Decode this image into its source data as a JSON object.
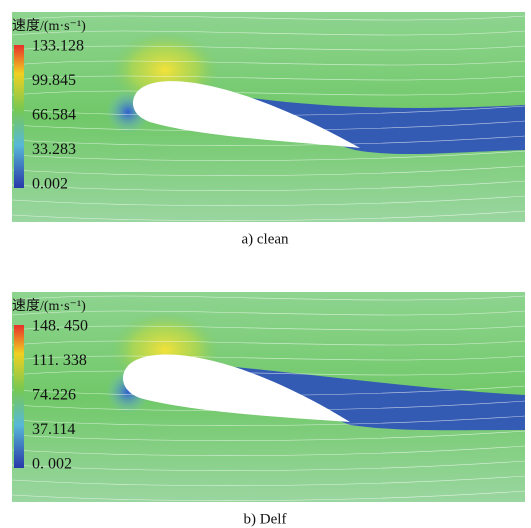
{
  "panels": [
    {
      "legend": {
        "title": "速度/(m·s⁻¹)",
        "ticks": [
          "133.128",
          "99.845",
          "66.584",
          "33.283",
          "0.002"
        ]
      },
      "caption": "a) clean"
    },
    {
      "legend": {
        "title": "速度/(m·s⁻¹)",
        "ticks": [
          "148. 450",
          "111. 338",
          "74.226",
          "37.114",
          "0. 002"
        ]
      },
      "caption": "b) Delf"
    }
  ]
}
